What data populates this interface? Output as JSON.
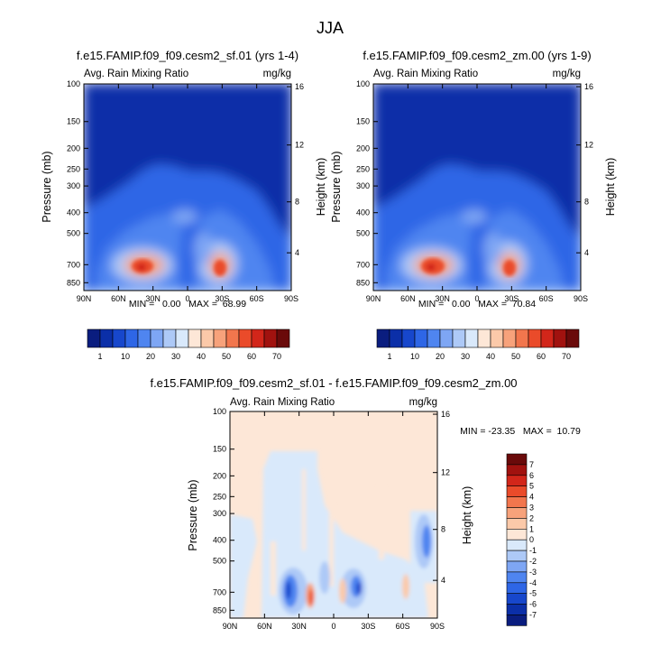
{
  "figure": {
    "title": "JJA"
  },
  "colorbar_colors": [
    "#0a1d7f",
    "#0b2fa8",
    "#1747cc",
    "#2e66e6",
    "#4f85f0",
    "#7ea6f4",
    "#adc9f7",
    "#d9e9fb",
    "#fde7d7",
    "#fbc9a9",
    "#f7a27b",
    "#f2764d",
    "#ea4b2a",
    "#d2261a",
    "#a1120f",
    "#6a0a0a"
  ],
  "diff_colors": [
    "#0a1d7f",
    "#0b2fa8",
    "#1747cc",
    "#2e66e6",
    "#4f85f0",
    "#7ea6f4",
    "#adc9f7",
    "#d9e9fb",
    "#fde7d7",
    "#fbc9a9",
    "#f7a27b",
    "#f2764d",
    "#ea4b2a",
    "#d2261a",
    "#a1120f",
    "#6a0a0a"
  ],
  "chart_data": [
    {
      "type": "heatmap",
      "title": "f.e15.FAMIP.f09_f09.cesm2_sf.01 (yrs 1-4)",
      "left_label": "Avg. Rain Mixing Ratio",
      "right_label": "mg/kg",
      "xlabel": "",
      "ylabel": "Pressure (mb)",
      "ylabel_right": "Height (km)",
      "x_ticks": [
        "90N",
        "60N",
        "30N",
        "0",
        "30S",
        "60S",
        "90S"
      ],
      "y_ticks": [
        "100",
        "150",
        "200",
        "250",
        "300",
        "400",
        "500",
        "700",
        "850"
      ],
      "y_right_ticks": [
        "16",
        "12",
        "8",
        "4"
      ],
      "stats": "MIN =   0.00   MAX =  68.99",
      "min": 0.0,
      "max": 68.99,
      "colorbar_labels": [
        "1",
        "10",
        "20",
        "30",
        "40",
        "50",
        "60",
        "70"
      ]
    },
    {
      "type": "heatmap",
      "title": "f.e15.FAMIP.f09_f09.cesm2_zm.00 (yrs 1-9)",
      "left_label": "Avg. Rain Mixing Ratio",
      "right_label": "mg/kg",
      "xlabel": "",
      "ylabel": "Pressure (mb)",
      "ylabel_right": "Height (km)",
      "x_ticks": [
        "90N",
        "60N",
        "30N",
        "0",
        "30S",
        "60S",
        "90S"
      ],
      "y_ticks": [
        "100",
        "150",
        "200",
        "250",
        "300",
        "400",
        "500",
        "700",
        "850"
      ],
      "y_right_ticks": [
        "16",
        "12",
        "8",
        "4"
      ],
      "stats": "MIN =   0.00   MAX =  70.84",
      "min": 0.0,
      "max": 70.84,
      "colorbar_labels": [
        "1",
        "10",
        "20",
        "30",
        "40",
        "50",
        "60",
        "70"
      ]
    },
    {
      "type": "heatmap",
      "title": "f.e15.FAMIP.f09_f09.cesm2_sf.01 - f.e15.FAMIP.f09_f09.cesm2_zm.00",
      "left_label": "Avg. Rain Mixing Ratio",
      "right_label": "mg/kg",
      "xlabel": "",
      "ylabel": "Pressure (mb)",
      "ylabel_right": "Height (km)",
      "x_ticks": [
        "90N",
        "60N",
        "30N",
        "0",
        "30S",
        "60S",
        "90S"
      ],
      "y_ticks": [
        "100",
        "150",
        "200",
        "250",
        "300",
        "400",
        "500",
        "700",
        "850"
      ],
      "y_right_ticks": [
        "16",
        "12",
        "8",
        "4"
      ],
      "stats": "MIN = -23.35   MAX =  10.79",
      "min": -23.35,
      "max": 10.79,
      "colorbar_labels": [
        "7",
        "6",
        "5",
        "4",
        "3",
        "2",
        "1",
        "0",
        "-1",
        "-2",
        "-3",
        "-4",
        "-5",
        "-6",
        "-7"
      ]
    }
  ]
}
